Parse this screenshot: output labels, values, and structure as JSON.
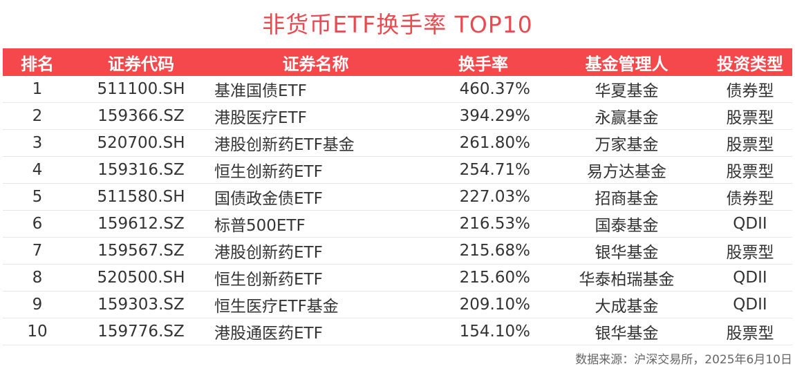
{
  "title": "非货币ETF换手率 TOP10",
  "headers": [
    "排名",
    "证券代码",
    "证券名称",
    "换手率",
    "基金管理人",
    "投资类型"
  ],
  "rows": [
    {
      "rank": "1",
      "code": "511100.SH",
      "name": "基准国债ETF",
      "turnover": "460.37%",
      "manager": "华夏基金",
      "type": "债券型"
    },
    {
      "rank": "2",
      "code": "159366.SZ",
      "name": "港股医疗ETF",
      "turnover": "394.29%",
      "manager": "永赢基金",
      "type": "股票型"
    },
    {
      "rank": "3",
      "code": "520700.SH",
      "name": "港股创新药ETF基金",
      "turnover": "261.80%",
      "manager": "万家基金",
      "type": "股票型"
    },
    {
      "rank": "4",
      "code": "159316.SZ",
      "name": "恒生创新药ETF",
      "turnover": "254.71%",
      "manager": "易方达基金",
      "type": "股票型"
    },
    {
      "rank": "5",
      "code": "511580.SH",
      "name": "国债政金债ETF",
      "turnover": "227.03%",
      "manager": "招商基金",
      "type": "债券型"
    },
    {
      "rank": "6",
      "code": "159612.SZ",
      "name": "标普500ETF",
      "turnover": "216.53%",
      "manager": "国泰基金",
      "type": "QDII"
    },
    {
      "rank": "7",
      "code": "159567.SZ",
      "name": "港股创新药ETF",
      "turnover": "215.68%",
      "manager": "银华基金",
      "type": "股票型"
    },
    {
      "rank": "8",
      "code": "520500.SH",
      "name": "恒生创新药ETF",
      "turnover": "215.60%",
      "manager": "华泰柏瑞基金",
      "type": "QDII"
    },
    {
      "rank": "9",
      "code": "159303.SZ",
      "name": "恒生医疗ETF基金",
      "turnover": "209.10%",
      "manager": "大成基金",
      "type": "QDII"
    },
    {
      "rank": "10",
      "code": "159776.SZ",
      "name": "港股通医药ETF",
      "turnover": "154.10%",
      "manager": "银华基金",
      "type": "股票型"
    }
  ],
  "source": "数据来源：沪深交易所，2025年6月10日",
  "colors": {
    "accent": "#f4484d",
    "title": "#e84a4f"
  }
}
